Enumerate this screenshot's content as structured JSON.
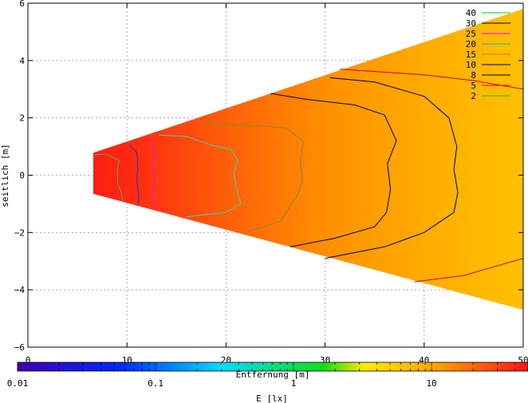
{
  "chart_data": {
    "type": "heatmap",
    "title": "",
    "xlabel": "Entfernung [m]",
    "ylabel": "seitlich [m]",
    "xlim": [
      0,
      50
    ],
    "ylim": [
      -6,
      6
    ],
    "x_ticks": [
      "0",
      "10",
      "20",
      "30",
      "40",
      "50"
    ],
    "y_ticks": [
      "6",
      "4",
      "2",
      "0",
      "−2",
      "−4",
      "−6"
    ],
    "grid": true,
    "legend_position": "top-right",
    "colorbar": {
      "label": "E [lx]",
      "scale": "log",
      "range": [
        0.01,
        50
      ],
      "ticks": [
        "0.01",
        "0.1",
        "1",
        "10"
      ]
    },
    "field": {
      "shape": "wedge",
      "x_start": 6.6,
      "x_end": 50,
      "upper_edge": [
        [
          6.6,
          0.78
        ],
        [
          50,
          5.8
        ]
      ],
      "lower_edge": [
        [
          6.6,
          -0.65
        ],
        [
          50,
          -4.7
        ]
      ],
      "lux_at_x": [
        [
          6.6,
          45
        ],
        [
          10,
          40
        ],
        [
          15,
          30
        ],
        [
          20,
          22
        ],
        [
          25,
          17
        ],
        [
          30,
          13
        ],
        [
          35,
          11
        ],
        [
          40,
          9
        ],
        [
          45,
          7.5
        ],
        [
          50,
          6.5
        ]
      ]
    },
    "series": [
      {
        "name": "40",
        "color": "#00cc00"
      },
      {
        "name": "30",
        "color": "#000000"
      },
      {
        "name": "25",
        "color": "#ff00ff"
      },
      {
        "name": "20",
        "color": "#00c0c0"
      },
      {
        "name": "15",
        "color": "#c08000"
      },
      {
        "name": "10",
        "color": "#000000"
      },
      {
        "name": "8",
        "color": "#000000"
      },
      {
        "name": "5",
        "color": "#e00000"
      },
      {
        "name": "2",
        "color": "#00cc00"
      }
    ],
    "contours": [
      {
        "level": 40,
        "color": "#6aa84f",
        "points": [
          [
            6.7,
            0.72
          ],
          [
            8,
            0.72
          ],
          [
            9.2,
            0.5
          ],
          [
            9.0,
            0.1
          ],
          [
            9.1,
            -0.3
          ],
          [
            9.4,
            -0.6
          ],
          [
            9.6,
            -0.9
          ]
        ]
      },
      {
        "level": 30,
        "color": "#2233cc",
        "points": [
          [
            10.2,
            1.05
          ],
          [
            11,
            0.8
          ],
          [
            11.1,
            0.3
          ],
          [
            11.0,
            -0.2
          ],
          [
            11.2,
            -0.7
          ],
          [
            11.1,
            -1.05
          ]
        ]
      },
      {
        "level": 25,
        "color": "#ff00ff",
        "points": [
          [
            12.2,
            1.25
          ],
          [
            12.8,
            0.8
          ],
          [
            12.6,
            0.3
          ],
          [
            12.8,
            -0.2
          ],
          [
            12.6,
            -0.7
          ],
          [
            12.9,
            -1.2
          ]
        ]
      },
      {
        "level": 20,
        "color": "#40d0c0",
        "points": [
          [
            13.2,
            1.4
          ],
          [
            16,
            1.35
          ],
          [
            18.5,
            1.05
          ],
          [
            20.5,
            0.9
          ],
          [
            21.2,
            0.5
          ],
          [
            20.8,
            0.1
          ],
          [
            21.0,
            -0.4
          ],
          [
            21.5,
            -1.0
          ],
          [
            20,
            -1.3
          ],
          [
            16,
            -1.45
          ]
        ]
      },
      {
        "level": 15,
        "color": "#8a8a2a",
        "points": [
          [
            17.5,
            1.8
          ],
          [
            22,
            1.75
          ],
          [
            26,
            1.65
          ],
          [
            27.8,
            1.2
          ],
          [
            27.5,
            0.5
          ],
          [
            27.7,
            -0.2
          ],
          [
            27.2,
            -0.7
          ],
          [
            25.5,
            -1.6
          ],
          [
            22,
            -2.0
          ]
        ]
      },
      {
        "level": 10,
        "color": "#000000",
        "points": [
          [
            24.5,
            2.85
          ],
          [
            28,
            2.65
          ],
          [
            33,
            2.45
          ],
          [
            36,
            2.1
          ],
          [
            37.2,
            1.2
          ],
          [
            36.3,
            0.4
          ],
          [
            36.6,
            -0.5
          ],
          [
            36.2,
            -1.3
          ],
          [
            35,
            -1.8
          ],
          [
            31,
            -2.2
          ],
          [
            26.5,
            -2.5
          ]
        ]
      },
      {
        "level": 8,
        "color": "#000000",
        "points": [
          [
            30.5,
            3.4
          ],
          [
            35,
            3.25
          ],
          [
            40,
            2.75
          ],
          [
            42.5,
            2.0
          ],
          [
            43.3,
            1.0
          ],
          [
            43.0,
            0.2
          ],
          [
            43.4,
            -0.6
          ],
          [
            43.0,
            -1.3
          ],
          [
            40,
            -2.0
          ],
          [
            36,
            -2.5
          ],
          [
            30,
            -2.9
          ]
        ]
      },
      {
        "level": 5,
        "color": "#cc0000",
        "points": [
          [
            31.5,
            3.7
          ],
          [
            40,
            3.5
          ],
          [
            45,
            3.3
          ],
          [
            50,
            3.0
          ]
        ]
      },
      {
        "level": 5,
        "color": "#cc0000",
        "points": [
          [
            39,
            -3.72
          ],
          [
            44,
            -3.5
          ],
          [
            48,
            -3.1
          ],
          [
            50,
            -2.9
          ]
        ]
      }
    ]
  }
}
